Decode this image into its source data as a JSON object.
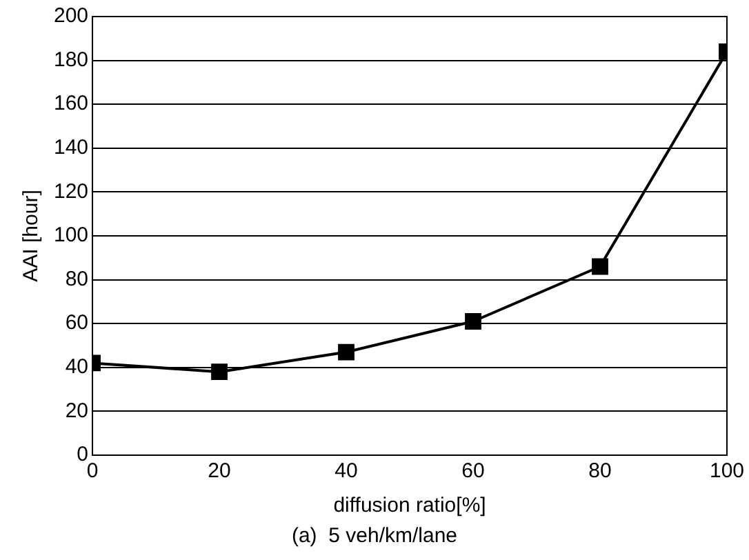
{
  "chart_data": {
    "type": "line",
    "x": [
      0,
      20,
      40,
      60,
      80,
      100
    ],
    "series": [
      {
        "color": "#000000",
        "values": [
          42,
          38,
          47,
          61,
          86,
          184
        ]
      }
    ],
    "xlim": [
      0,
      100
    ],
    "xticks": [
      0,
      20,
      40,
      60,
      80,
      100
    ],
    "ylim": [
      0,
      200
    ],
    "yticks": [
      0,
      20,
      40,
      60,
      80,
      100,
      120,
      140,
      160,
      180,
      200
    ],
    "xlabel": "diffusion ratio[%]",
    "ylabel": "AAI [hour]",
    "annotations": [
      "(a)  5 veh/km/lane"
    ],
    "grid": "y",
    "marker": "square",
    "line_style": "solid",
    "legend": false
  }
}
